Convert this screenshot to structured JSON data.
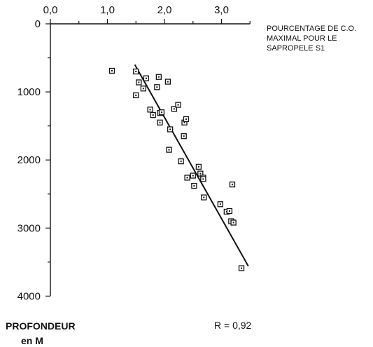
{
  "chart_data": {
    "type": "scatter",
    "title": "",
    "annotation": [
      "POURCENTAGE DE C.O.",
      "MAXIMAL POUR LE",
      "SAPROPELE S1"
    ],
    "ylabel": [
      "PROFONDEUR",
      "en M"
    ],
    "xlim": [
      0,
      3.5
    ],
    "ylim": [
      0,
      4000
    ],
    "y_inverted": true,
    "x_axis_position": "top",
    "x_ticks": [
      0,
      1,
      2,
      3
    ],
    "x_tick_labels": [
      "0,0",
      "1,0",
      "2,0",
      "3,0"
    ],
    "y_ticks": [
      0,
      1000,
      2000,
      3000,
      4000
    ],
    "y_tick_labels": [
      "0",
      "1000",
      "2000",
      "3000",
      "4000"
    ],
    "grid": false,
    "r_text": "R = 0,92",
    "points": [
      {
        "x": 1.08,
        "y": 690
      },
      {
        "x": 1.5,
        "y": 700
      },
      {
        "x": 1.55,
        "y": 860
      },
      {
        "x": 1.63,
        "y": 950
      },
      {
        "x": 1.68,
        "y": 800
      },
      {
        "x": 1.5,
        "y": 1050
      },
      {
        "x": 1.87,
        "y": 930
      },
      {
        "x": 1.9,
        "y": 780
      },
      {
        "x": 2.06,
        "y": 850
      },
      {
        "x": 1.75,
        "y": 1260
      },
      {
        "x": 1.8,
        "y": 1340
      },
      {
        "x": 1.92,
        "y": 1310
      },
      {
        "x": 1.95,
        "y": 1300
      },
      {
        "x": 1.92,
        "y": 1450
      },
      {
        "x": 2.17,
        "y": 1250
      },
      {
        "x": 2.24,
        "y": 1190
      },
      {
        "x": 2.1,
        "y": 1550
      },
      {
        "x": 2.35,
        "y": 1450
      },
      {
        "x": 2.38,
        "y": 1400
      },
      {
        "x": 2.34,
        "y": 1650
      },
      {
        "x": 2.08,
        "y": 1850
      },
      {
        "x": 2.29,
        "y": 2020
      },
      {
        "x": 2.6,
        "y": 2100
      },
      {
        "x": 2.63,
        "y": 2200
      },
      {
        "x": 2.4,
        "y": 2260
      },
      {
        "x": 2.5,
        "y": 2230
      },
      {
        "x": 2.68,
        "y": 2260
      },
      {
        "x": 2.68,
        "y": 2280
      },
      {
        "x": 2.52,
        "y": 2380
      },
      {
        "x": 3.19,
        "y": 2360
      },
      {
        "x": 2.69,
        "y": 2550
      },
      {
        "x": 2.98,
        "y": 2650
      },
      {
        "x": 3.09,
        "y": 2760
      },
      {
        "x": 3.14,
        "y": 2750
      },
      {
        "x": 3.17,
        "y": 2900
      },
      {
        "x": 3.21,
        "y": 2920
      },
      {
        "x": 3.35,
        "y": 3590
      }
    ],
    "fit_line": {
      "x": [
        1.48,
        3.47
      ],
      "y": [
        600,
        3560
      ]
    }
  }
}
